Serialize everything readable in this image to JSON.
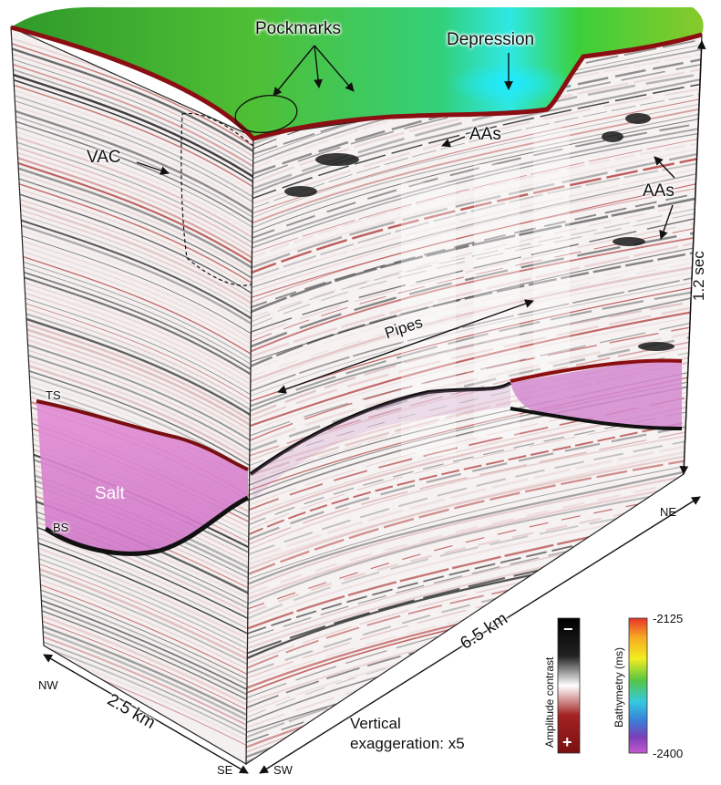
{
  "labels": {
    "pockmarks": "Pockmarks",
    "depression": "Depression",
    "vac": "VAC",
    "aas_center": "AAs",
    "aas_right": "AAs",
    "pipes": "Pipes",
    "ts": "TS",
    "salt": "Salt",
    "bs": "BS",
    "time_scale": "1.2 sec",
    "distance_long": "6.5 km",
    "distance_short": "2.5 km",
    "nw": "NW",
    "se": "SE",
    "sw": "SW",
    "ne": "NE",
    "vertical_exaggeration_line1": "Vertical",
    "vertical_exaggeration_line2": "exaggeration: x5"
  },
  "amplitude_legend": {
    "title": "Amplitude contrast",
    "top_symbol": "−",
    "bottom_symbol": "+",
    "colors": [
      "#000000",
      "#ffffff",
      "#8b1a1a"
    ]
  },
  "bathymetry_legend": {
    "title": "Bathymetry (ms)",
    "max_label": "-2125",
    "min_label": "-2400",
    "colors": [
      "#e8332a",
      "#f7a823",
      "#f2ee1f",
      "#57c642",
      "#35c8e0",
      "#3a7fd8",
      "#7b3fb8",
      "#c45ad0"
    ]
  },
  "colors": {
    "seafloor_reflector": "#8b0f12",
    "salt": "#d48ad0",
    "seismic_dark": "#1a1a1a",
    "seismic_red": "#b03a3a",
    "seabed_green": "#3fb23a",
    "depression_cyan": "#29e6e6"
  }
}
